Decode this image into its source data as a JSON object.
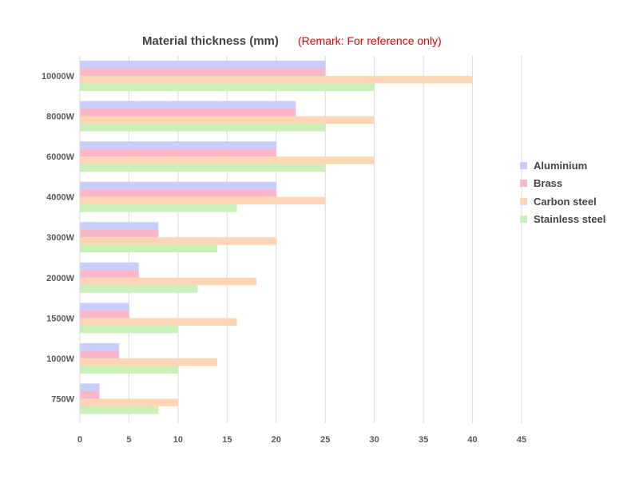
{
  "chart_data": {
    "type": "bar",
    "orientation": "horizontal",
    "title": "Material thickness (mm)",
    "remark": "(Remark: For reference only)",
    "xlabel": "",
    "ylabel": "",
    "xlim": [
      0,
      45
    ],
    "xticks": [
      0,
      5,
      10,
      15,
      20,
      25,
      30,
      35,
      40,
      45
    ],
    "grid": true,
    "legend_position": "right",
    "categories": [
      "10000W",
      "8000W",
      "6000W",
      "4000W",
      "3000W",
      "2000W",
      "1500W",
      "1000W",
      "750W"
    ],
    "series": [
      {
        "name": "Aluminium",
        "color": "#c9cdfc",
        "values": [
          25,
          22,
          20,
          20,
          8,
          6,
          5,
          4,
          2
        ]
      },
      {
        "name": "Brass",
        "color": "#f8b6c6",
        "values": [
          25,
          22,
          20,
          20,
          8,
          6,
          5,
          4,
          2
        ]
      },
      {
        "name": "Carbon steel",
        "color": "#fcd6b4",
        "values": [
          40,
          30,
          30,
          25,
          20,
          18,
          16,
          14,
          10
        ]
      },
      {
        "name": "Stainless steel",
        "color": "#c9f0b8",
        "values": [
          30,
          25,
          25,
          16,
          14,
          12,
          10,
          10,
          8
        ]
      }
    ]
  }
}
